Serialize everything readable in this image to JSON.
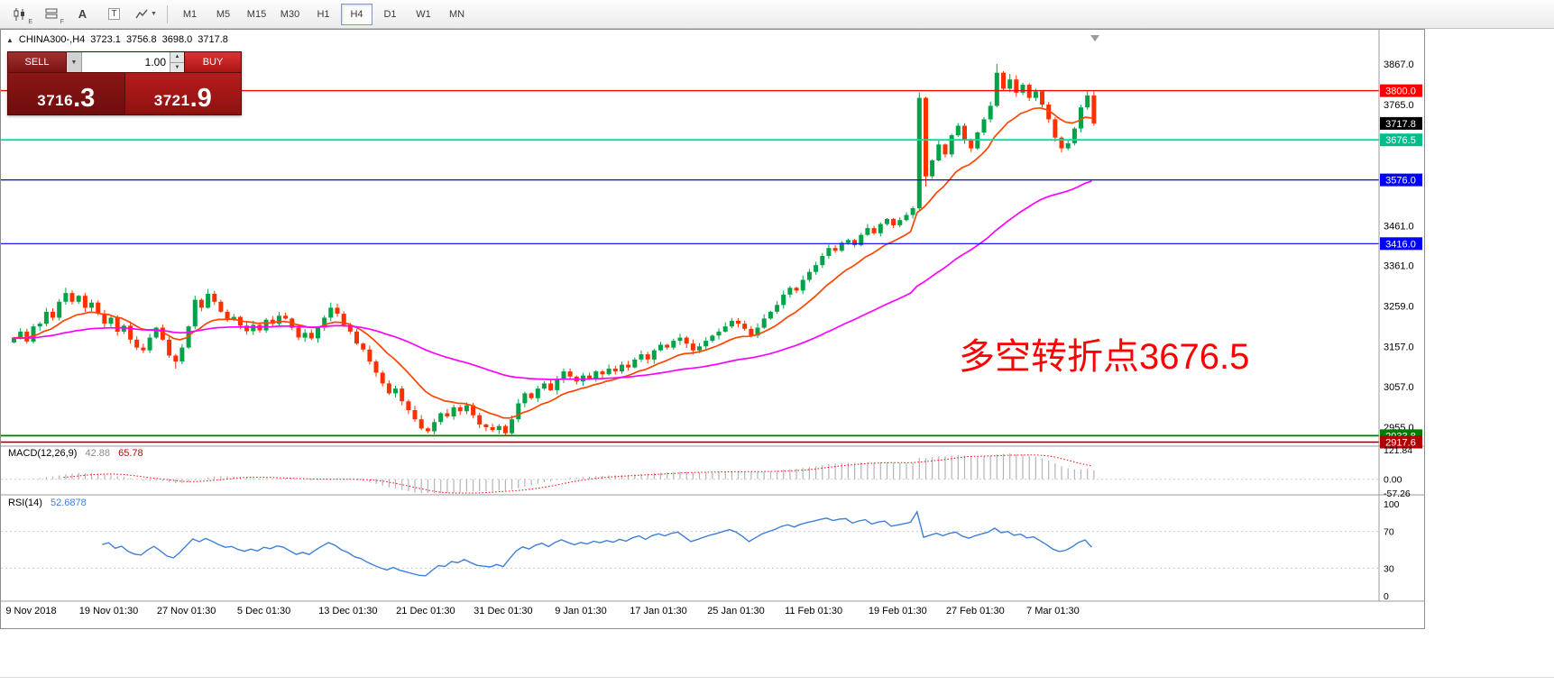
{
  "toolbar": {
    "icons": [
      {
        "name": "chart-candles-toolbar-icon",
        "badge": "E"
      },
      {
        "name": "chart-windows-toolbar-icon",
        "badge": "F"
      },
      {
        "name": "text-label-tool-icon",
        "label": "A"
      },
      {
        "name": "text-box-tool-icon",
        "label": "T"
      },
      {
        "name": "drawing-tools-icon",
        "label": ""
      }
    ],
    "timeframes": [
      "M1",
      "M5",
      "M15",
      "M30",
      "H1",
      "H4",
      "D1",
      "W1",
      "MN"
    ],
    "active_timeframe": "H4"
  },
  "chart_header": {
    "collapse_marker": "▲",
    "symbol": "CHINA300-,H4",
    "open": "3723.1",
    "high": "3756.8",
    "low": "3698.0",
    "close": "3717.8"
  },
  "trade_panel": {
    "sell_label": "SELL",
    "buy_label": "BUY",
    "volume": "1.00",
    "sell_price_main": "3716",
    "sell_price_frac": ".3",
    "buy_price_main": "3721",
    "buy_price_frac": ".9"
  },
  "annotation": {
    "text": "多空转折点3676.5",
    "color": "#ff0000"
  },
  "indicators": {
    "macd_label": "MACD(12,26,9)",
    "macd_value_1": "42.88",
    "macd_value_2": "65.78",
    "macd_axis": [
      "121.84",
      "0.00",
      "-57.26"
    ],
    "rsi_label": "RSI(14)",
    "rsi_value": "52.6878",
    "rsi_axis": [
      "100",
      "70",
      "30",
      "0"
    ],
    "rsi_levels": [
      70,
      30
    ]
  },
  "chart_data": {
    "type": "candlestick",
    "symbol": "CHINA300-",
    "timeframe": "H4",
    "price_range": [
      2955.0,
      3867.0
    ],
    "up_color": "#00A347",
    "down_color": "#FF3000",
    "ma_fast_color": "#FF4500",
    "ma_slow_color": "#FF00FF",
    "ma_fast_period": 13,
    "ma_slow_period": 55,
    "macd_hist_color": "#b4b4b4",
    "macd_signal_color": "#ff0000",
    "rsi_color": "#3e7fd9",
    "closes": [
      3178,
      3195,
      3170,
      3208,
      3215,
      3245,
      3230,
      3270,
      3292,
      3270,
      3285,
      3255,
      3268,
      3240,
      3215,
      3230,
      3195,
      3210,
      3175,
      3155,
      3148,
      3180,
      3205,
      3175,
      3135,
      3120,
      3155,
      3208,
      3275,
      3255,
      3290,
      3270,
      3245,
      3225,
      3232,
      3210,
      3196,
      3212,
      3198,
      3225,
      3215,
      3235,
      3228,
      3205,
      3180,
      3192,
      3178,
      3205,
      3230,
      3255,
      3240,
      3212,
      3195,
      3165,
      3150,
      3120,
      3092,
      3065,
      3040,
      3052,
      3020,
      2998,
      2975,
      2952,
      2945,
      2968,
      2990,
      2982,
      3005,
      2995,
      3010,
      2985,
      2962,
      2955,
      2948,
      2958,
      2940,
      2975,
      3015,
      3040,
      3028,
      3052,
      3065,
      3048,
      3075,
      3095,
      3082,
      3070,
      3085,
      3078,
      3095,
      3088,
      3102,
      3095,
      3112,
      3105,
      3125,
      3138,
      3125,
      3148,
      3162,
      3155,
      3172,
      3180,
      3165,
      3148,
      3158,
      3172,
      3185,
      3195,
      3208,
      3222,
      3215,
      3202,
      3185,
      3205,
      3228,
      3245,
      3262,
      3288,
      3305,
      3298,
      3325,
      3345,
      3362,
      3385,
      3405,
      3398,
      3418,
      3425,
      3412,
      3438,
      3455,
      3442,
      3465,
      3478,
      3462,
      3475,
      3488,
      3505,
      3782,
      3585,
      3625,
      3665,
      3640,
      3688,
      3712,
      3675,
      3655,
      3695,
      3728,
      3762,
      3845,
      3805,
      3828,
      3795,
      3815,
      3782,
      3798,
      3765,
      3728,
      3682,
      3655,
      3668,
      3705,
      3758,
      3788,
      3717.8
    ],
    "wick_high_overrides": {
      "8": 3305,
      "30": 3302,
      "49": 3268,
      "140": 3796,
      "152": 3867,
      "154": 3842,
      "166": 3800
    },
    "wick_low_overrides": {
      "25": 3102,
      "64": 2940,
      "76": 2933.8,
      "141": 3560,
      "162": 3645
    },
    "h_lines": [
      {
        "price": 3800.0,
        "color": "#ff0000",
        "label": "3800.0",
        "label_bg": "#ff0000",
        "width": 1.4
      },
      {
        "price": 3676.5,
        "color": "#00E0A0",
        "label": "3676.5",
        "label_bg": "#00BE8C",
        "width": 1.8
      },
      {
        "price": 3576.0,
        "color": "#0000ff",
        "label": "3576.0",
        "label_bg": "#0000ff",
        "width": 1.2
      },
      {
        "price": 3416.0,
        "color": "#0000ff",
        "label": "3416.0",
        "label_bg": "#0000ff",
        "width": 1.2
      },
      {
        "price": 2933.8,
        "color": "#007a00",
        "label": "2933.8",
        "label_bg": "#007a00",
        "width": 1.8
      },
      {
        "price": 2917.6,
        "color": "#800000",
        "label": "2917.6",
        "label_bg": "#b00000",
        "width": 1.4
      }
    ],
    "current_price": {
      "value": "3717.8",
      "price": 3717.8,
      "bg": "#000000"
    },
    "axis_ticks": [
      "3867.0",
      "3765.0",
      "3461.0",
      "3361.0",
      "3259.0",
      "3157.0",
      "3057.0",
      "2955.0"
    ],
    "dates": [
      {
        "label": "9 Nov 2018",
        "i": 3
      },
      {
        "label": "19 Nov 01:30",
        "i": 15
      },
      {
        "label": "27 Nov 01:30",
        "i": 27
      },
      {
        "label": "5 Dec 01:30",
        "i": 39
      },
      {
        "label": "13 Dec 01:30",
        "i": 52
      },
      {
        "label": "21 Dec 01:30",
        "i": 64
      },
      {
        "label": "31 Dec 01:30",
        "i": 76
      },
      {
        "label": "9 Jan 01:30",
        "i": 88
      },
      {
        "label": "17 Jan 01:30",
        "i": 100
      },
      {
        "label": "25 Jan 01:30",
        "i": 112
      },
      {
        "label": "11 Feb 01:30",
        "i": 124
      },
      {
        "label": "19 Feb 01:30",
        "i": 137
      },
      {
        "label": "27 Feb 01:30",
        "i": 149
      },
      {
        "label": "7 Mar 01:30",
        "i": 161
      }
    ]
  }
}
